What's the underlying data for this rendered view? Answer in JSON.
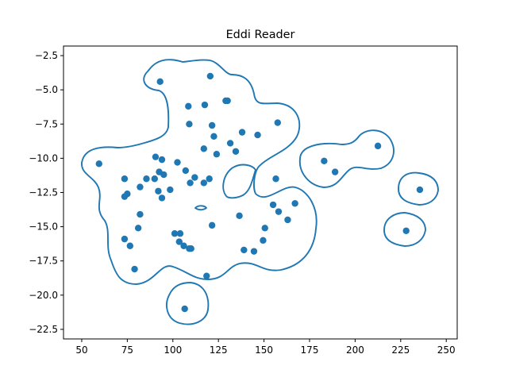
{
  "chart_data": {
    "type": "scatter",
    "title": "Eddi Reader",
    "xlabel": "",
    "ylabel": "",
    "xlim": [
      40,
      256
    ],
    "ylim": [
      -23.2,
      -1.8
    ],
    "xticks": [
      50,
      75,
      100,
      125,
      150,
      175,
      200,
      225,
      250
    ],
    "yticks": [
      -2.5,
      -5.0,
      -7.5,
      -10.0,
      -12.5,
      -15.0,
      -17.5,
      -20.0,
      -22.5
    ],
    "grid": false,
    "legend": "none",
    "marker_color": "#1f77b4",
    "contour_color": "#1f77b4",
    "points": [
      [
        59.5,
        -10.4
      ],
      [
        73.5,
        -11.5
      ],
      [
        75.0,
        -12.6
      ],
      [
        73.5,
        -12.8
      ],
      [
        82.0,
        -14.1
      ],
      [
        81.0,
        -15.1
      ],
      [
        73.5,
        -15.9
      ],
      [
        76.5,
        -16.4
      ],
      [
        79.0,
        -18.1
      ],
      [
        82.0,
        -12.1
      ],
      [
        85.5,
        -11.5
      ],
      [
        90.0,
        -11.5
      ],
      [
        92.0,
        -12.4
      ],
      [
        94.0,
        -12.9
      ],
      [
        92.5,
        -11.0
      ],
      [
        95.0,
        -11.2
      ],
      [
        90.5,
        -9.9
      ],
      [
        94.0,
        -10.1
      ],
      [
        98.5,
        -12.3
      ],
      [
        93.0,
        -4.4
      ],
      [
        102.5,
        -10.3
      ],
      [
        107.0,
        -10.9
      ],
      [
        109.5,
        -11.8
      ],
      [
        112.0,
        -11.4
      ],
      [
        117.0,
        -11.8
      ],
      [
        120.0,
        -11.5
      ],
      [
        117.0,
        -9.3
      ],
      [
        122.5,
        -8.4
      ],
      [
        124.0,
        -9.7
      ],
      [
        121.5,
        -7.6
      ],
      [
        117.5,
        -6.1
      ],
      [
        108.5,
        -6.2
      ],
      [
        109.0,
        -7.5
      ],
      [
        120.5,
        -4.0
      ],
      [
        129.0,
        -5.8
      ],
      [
        130.0,
        -5.8
      ],
      [
        131.5,
        -8.9
      ],
      [
        134.5,
        -9.5
      ],
      [
        138.0,
        -8.1
      ],
      [
        146.5,
        -8.3
      ],
      [
        157.5,
        -7.4
      ],
      [
        156.5,
        -11.5
      ],
      [
        136.5,
        -14.2
      ],
      [
        121.5,
        -14.9
      ],
      [
        101.0,
        -15.5
      ],
      [
        104.0,
        -15.5
      ],
      [
        103.5,
        -16.1
      ],
      [
        106.0,
        -16.4
      ],
      [
        109.0,
        -16.6
      ],
      [
        110.0,
        -16.6
      ],
      [
        118.5,
        -18.6
      ],
      [
        106.5,
        -21.0
      ],
      [
        139.0,
        -16.7
      ],
      [
        144.5,
        -16.8
      ],
      [
        149.5,
        -16.0
      ],
      [
        150.5,
        -15.1
      ],
      [
        155.0,
        -13.4
      ],
      [
        158.0,
        -13.9
      ],
      [
        163.0,
        -14.5
      ],
      [
        167.0,
        -13.3
      ],
      [
        183.0,
        -10.2
      ],
      [
        189.0,
        -11.0
      ],
      [
        212.5,
        -9.1
      ],
      [
        235.5,
        -12.3
      ],
      [
        228.0,
        -15.3
      ]
    ]
  }
}
